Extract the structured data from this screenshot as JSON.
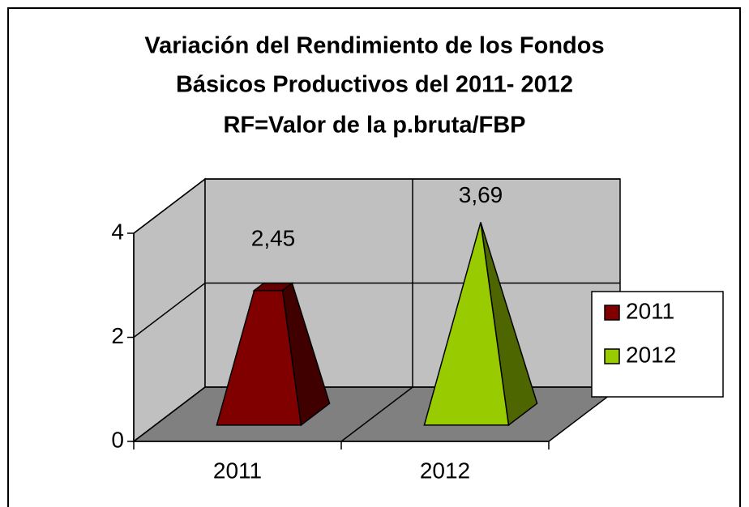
{
  "chart_data": {
    "type": "pyramid3d",
    "title": [
      "Variación del Rendimiento de los Fondos",
      "Básicos Productivos del 2011- 2012",
      "RF=Valor de la p.bruta/FBP"
    ],
    "categories": [
      "2011",
      "2012"
    ],
    "values": [
      2.45,
      3.69
    ],
    "value_labels": [
      "2,45",
      "3,69"
    ],
    "colors": [
      "#800000",
      "#99cc00"
    ],
    "ylim": [
      0,
      4
    ],
    "yticks": [
      0,
      2,
      4
    ],
    "grid": true,
    "legend": "right"
  }
}
